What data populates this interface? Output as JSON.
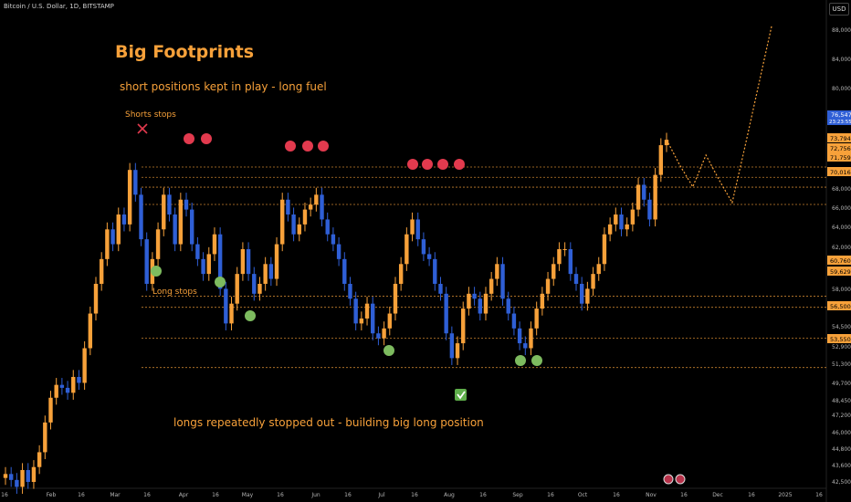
{
  "header": {
    "symbol_title": "Bitcoin / U.S. Dollar, 1D, BITSTAMP",
    "currency_button": "USD"
  },
  "annotations": {
    "title": "Big Footprints",
    "subtitle": "short positions kept in play - long fuel",
    "shorts_stops": "Shorts stops",
    "long_stops": "Long stops",
    "bottom_note": "longs repeatedly stopped out - building big long position"
  },
  "colors": {
    "background": "#000000",
    "up_candle": "#f7a13a",
    "down_candle": "#2f5fd6",
    "annotation": "#f7a13a",
    "short_stop_dot": "#e23a4e",
    "long_stop_dot": "#7dbb5f",
    "price_tag": "#f7a13a",
    "current_price_tag": "#2f5fd6"
  },
  "icons": {
    "shorts_marker": "x-mark-icon",
    "checkmark": "check-icon",
    "event_badges": "flag-icon"
  },
  "chart_data": {
    "type": "candlestick",
    "x_ticks": [
      "16",
      "Feb",
      "16",
      "Mar",
      "16",
      "Apr",
      "16",
      "May",
      "16",
      "Jun",
      "16",
      "Jul",
      "16",
      "Aug",
      "16",
      "Sep",
      "16",
      "Oct",
      "16",
      "Nov",
      "16",
      "Dec",
      "16",
      "2025",
      "16"
    ],
    "y_ticks": [
      "88,000",
      "84,000",
      "80,000",
      "76,547",
      "73,794",
      "72,756",
      "71,759",
      "70,016",
      "68,000",
      "66,000",
      "64,000",
      "62,000",
      "60,760",
      "59,629",
      "58,000",
      "56,500",
      "54,500",
      "53,550",
      "52,900",
      "51,300",
      "49,700",
      "48,450",
      "47,200",
      "46,000",
      "44,800",
      "43,600",
      "42,500"
    ],
    "current_price": "76,547",
    "countdown": "23:23:55",
    "levels": [
      {
        "label": "73,794",
        "value": 73794
      },
      {
        "label": "72,756",
        "value": 72756
      },
      {
        "label": "71,759",
        "value": 71759
      },
      {
        "label": "70,016",
        "value": 70016
      },
      {
        "label": "60,760",
        "value": 60760
      },
      {
        "label": "59,629",
        "value": 59629
      },
      {
        "label": "56,500",
        "value": 56500
      },
      {
        "label": "53,550",
        "value": 53550
      }
    ],
    "ohlc_close_series": [
      42800,
      42200,
      41500,
      43200,
      42000,
      43500,
      45000,
      48000,
      50500,
      51800,
      51500,
      51000,
      52600,
      52000,
      55500,
      59000,
      62000,
      64500,
      67500,
      66000,
      69000,
      68000,
      73500,
      71000,
      66500,
      62000,
      64500,
      67500,
      71000,
      69000,
      66000,
      70500,
      69500,
      66000,
      64500,
      63000,
      65000,
      67000,
      61500,
      58000,
      60000,
      63000,
      65500,
      63000,
      61000,
      62000,
      64000,
      62500,
      66000,
      70500,
      69000,
      67000,
      68000,
      69500,
      70000,
      71000,
      68500,
      67000,
      66000,
      64500,
      62000,
      60500,
      58000,
      58500,
      60000,
      57000,
      56500,
      57500,
      59000,
      62000,
      64000,
      67000,
      68500,
      66500,
      65000,
      64500,
      62000,
      61000,
      57000,
      54500,
      56000,
      59500,
      61000,
      60500,
      59000,
      61000,
      62500,
      64000,
      60500,
      59000,
      57500,
      56000,
      55500,
      57500,
      59500,
      61000,
      62500,
      64000,
      65500,
      65500,
      63000,
      62000,
      60000,
      61500,
      63000,
      64000,
      67000,
      68000,
      69000,
      67500,
      68000,
      69500,
      72000,
      70500,
      68500,
      73000,
      76000,
      76547
    ],
    "projection": [
      76547,
      74000,
      71800,
      75000,
      72500,
      70200,
      76000,
      82000,
      88000
    ],
    "ylim": [
      42000,
      89000
    ]
  }
}
